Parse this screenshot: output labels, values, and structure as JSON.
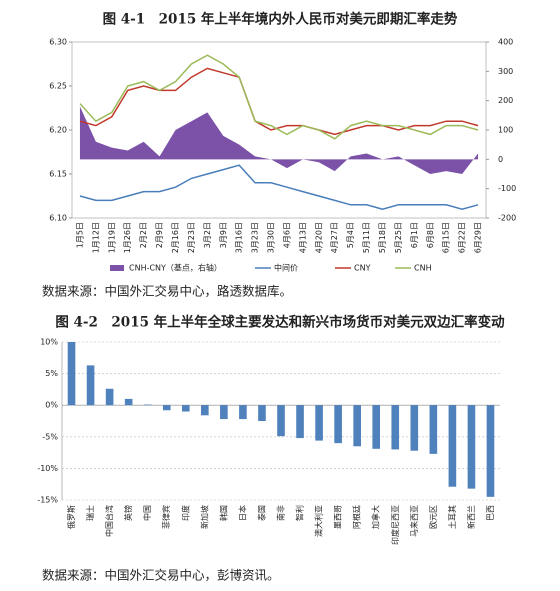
{
  "chart_data": [
    {
      "type": "line",
      "title": "图 4-1　2015 年上半年境内外人民币对美元即期汇率走势",
      "source": "数据来源：中国外汇交易中心，路透数据库。",
      "categories": [
        "1月5日",
        "1月12日",
        "1月19日",
        "1月26日",
        "2月2日",
        "2月9日",
        "2月16日",
        "2月23日",
        "3月2日",
        "3月9日",
        "3月16日",
        "3月23日",
        "3月30日",
        "4月6日",
        "4月13日",
        "4月20日",
        "4月27日",
        "5月4日",
        "5月11日",
        "5月18日",
        "5月25日",
        "6月1日",
        "6月8日",
        "6月15日",
        "6月22日",
        "6月29日"
      ],
      "series": [
        {
          "name": "CNH-CNY（基点，右轴）",
          "type": "area",
          "axis": "y2",
          "color": "#7b52a8",
          "values": [
            180,
            60,
            40,
            30,
            60,
            10,
            100,
            130,
            160,
            80,
            50,
            10,
            0,
            -30,
            0,
            -10,
            -40,
            10,
            20,
            0,
            10,
            -20,
            -50,
            -40,
            -50,
            20
          ]
        },
        {
          "name": "中间价",
          "color": "#4a7ebb",
          "values": [
            6.125,
            6.12,
            6.12,
            6.125,
            6.13,
            6.13,
            6.135,
            6.145,
            6.15,
            6.155,
            6.16,
            6.14,
            6.14,
            6.135,
            6.13,
            6.125,
            6.12,
            6.115,
            6.115,
            6.11,
            6.115,
            6.115,
            6.115,
            6.115,
            6.11,
            6.115
          ]
        },
        {
          "name": "CNY",
          "color": "#c0392b",
          "values": [
            6.21,
            6.205,
            6.215,
            6.245,
            6.25,
            6.245,
            6.245,
            6.26,
            6.27,
            6.265,
            6.26,
            6.21,
            6.2,
            6.205,
            6.205,
            6.2,
            6.195,
            6.2,
            6.205,
            6.205,
            6.2,
            6.205,
            6.205,
            6.21,
            6.21,
            6.205
          ]
        },
        {
          "name": "CNH",
          "color": "#9bbb59",
          "values": [
            6.23,
            6.21,
            6.22,
            6.25,
            6.255,
            6.245,
            6.255,
            6.275,
            6.285,
            6.275,
            6.26,
            6.21,
            6.205,
            6.195,
            6.205,
            6.2,
            6.19,
            6.205,
            6.21,
            6.205,
            6.205,
            6.2,
            6.195,
            6.205,
            6.205,
            6.2
          ]
        }
      ],
      "ylim": [
        6.1,
        6.3
      ],
      "yticks": [
        {
          "value": 6.1,
          "label": "6.10"
        },
        6.15,
        {
          "value": 6.2,
          "label": "6.20"
        },
        6.25,
        {
          "value": 6.3,
          "label": "6.30"
        }
      ],
      "y2lim": [
        -200,
        400
      ],
      "y2ticks": [
        -200,
        -100,
        0,
        100,
        200,
        300,
        400
      ],
      "legend": "bottom"
    },
    {
      "type": "bar",
      "title": "图 4-2　2015 年上半年全球主要发达和新兴市场货币对美元双边汇率变动",
      "source": "数据来源：中国外汇交易中心，彭博资讯。",
      "categories": [
        "俄罗斯",
        "瑞士",
        "中国台湾",
        "英镑",
        "中国",
        "菲律宾",
        "印度",
        "新加坡",
        "韩国",
        "日本",
        "泰国",
        "南非",
        "智利",
        "澳大利亚",
        "墨西哥",
        "阿根廷",
        "加拿大",
        "印度尼西亚",
        "马来西亚",
        "欧元区",
        "土耳其",
        "新西兰",
        "巴西"
      ],
      "values": [
        10,
        6.3,
        2.6,
        1,
        0.1,
        -0.8,
        -1,
        -1.6,
        -2.2,
        -2.2,
        -2.5,
        -4.9,
        -5.2,
        -5.6,
        -6,
        -6.5,
        -6.9,
        -7,
        -7.2,
        -7.7,
        -12.9,
        -13.2,
        -14.5
      ],
      "color": "#4f81bd",
      "ylim": [
        -15,
        10
      ],
      "yticks": [
        {
          "value": -15,
          "label": "-15%"
        },
        {
          "value": -10,
          "label": "-10%"
        },
        {
          "value": -5,
          "label": "-5%"
        },
        {
          "value": 0,
          "label": "0%"
        },
        {
          "value": 5,
          "label": "5%"
        },
        {
          "value": 10,
          "label": "10%"
        }
      ],
      "grid": true
    }
  ]
}
